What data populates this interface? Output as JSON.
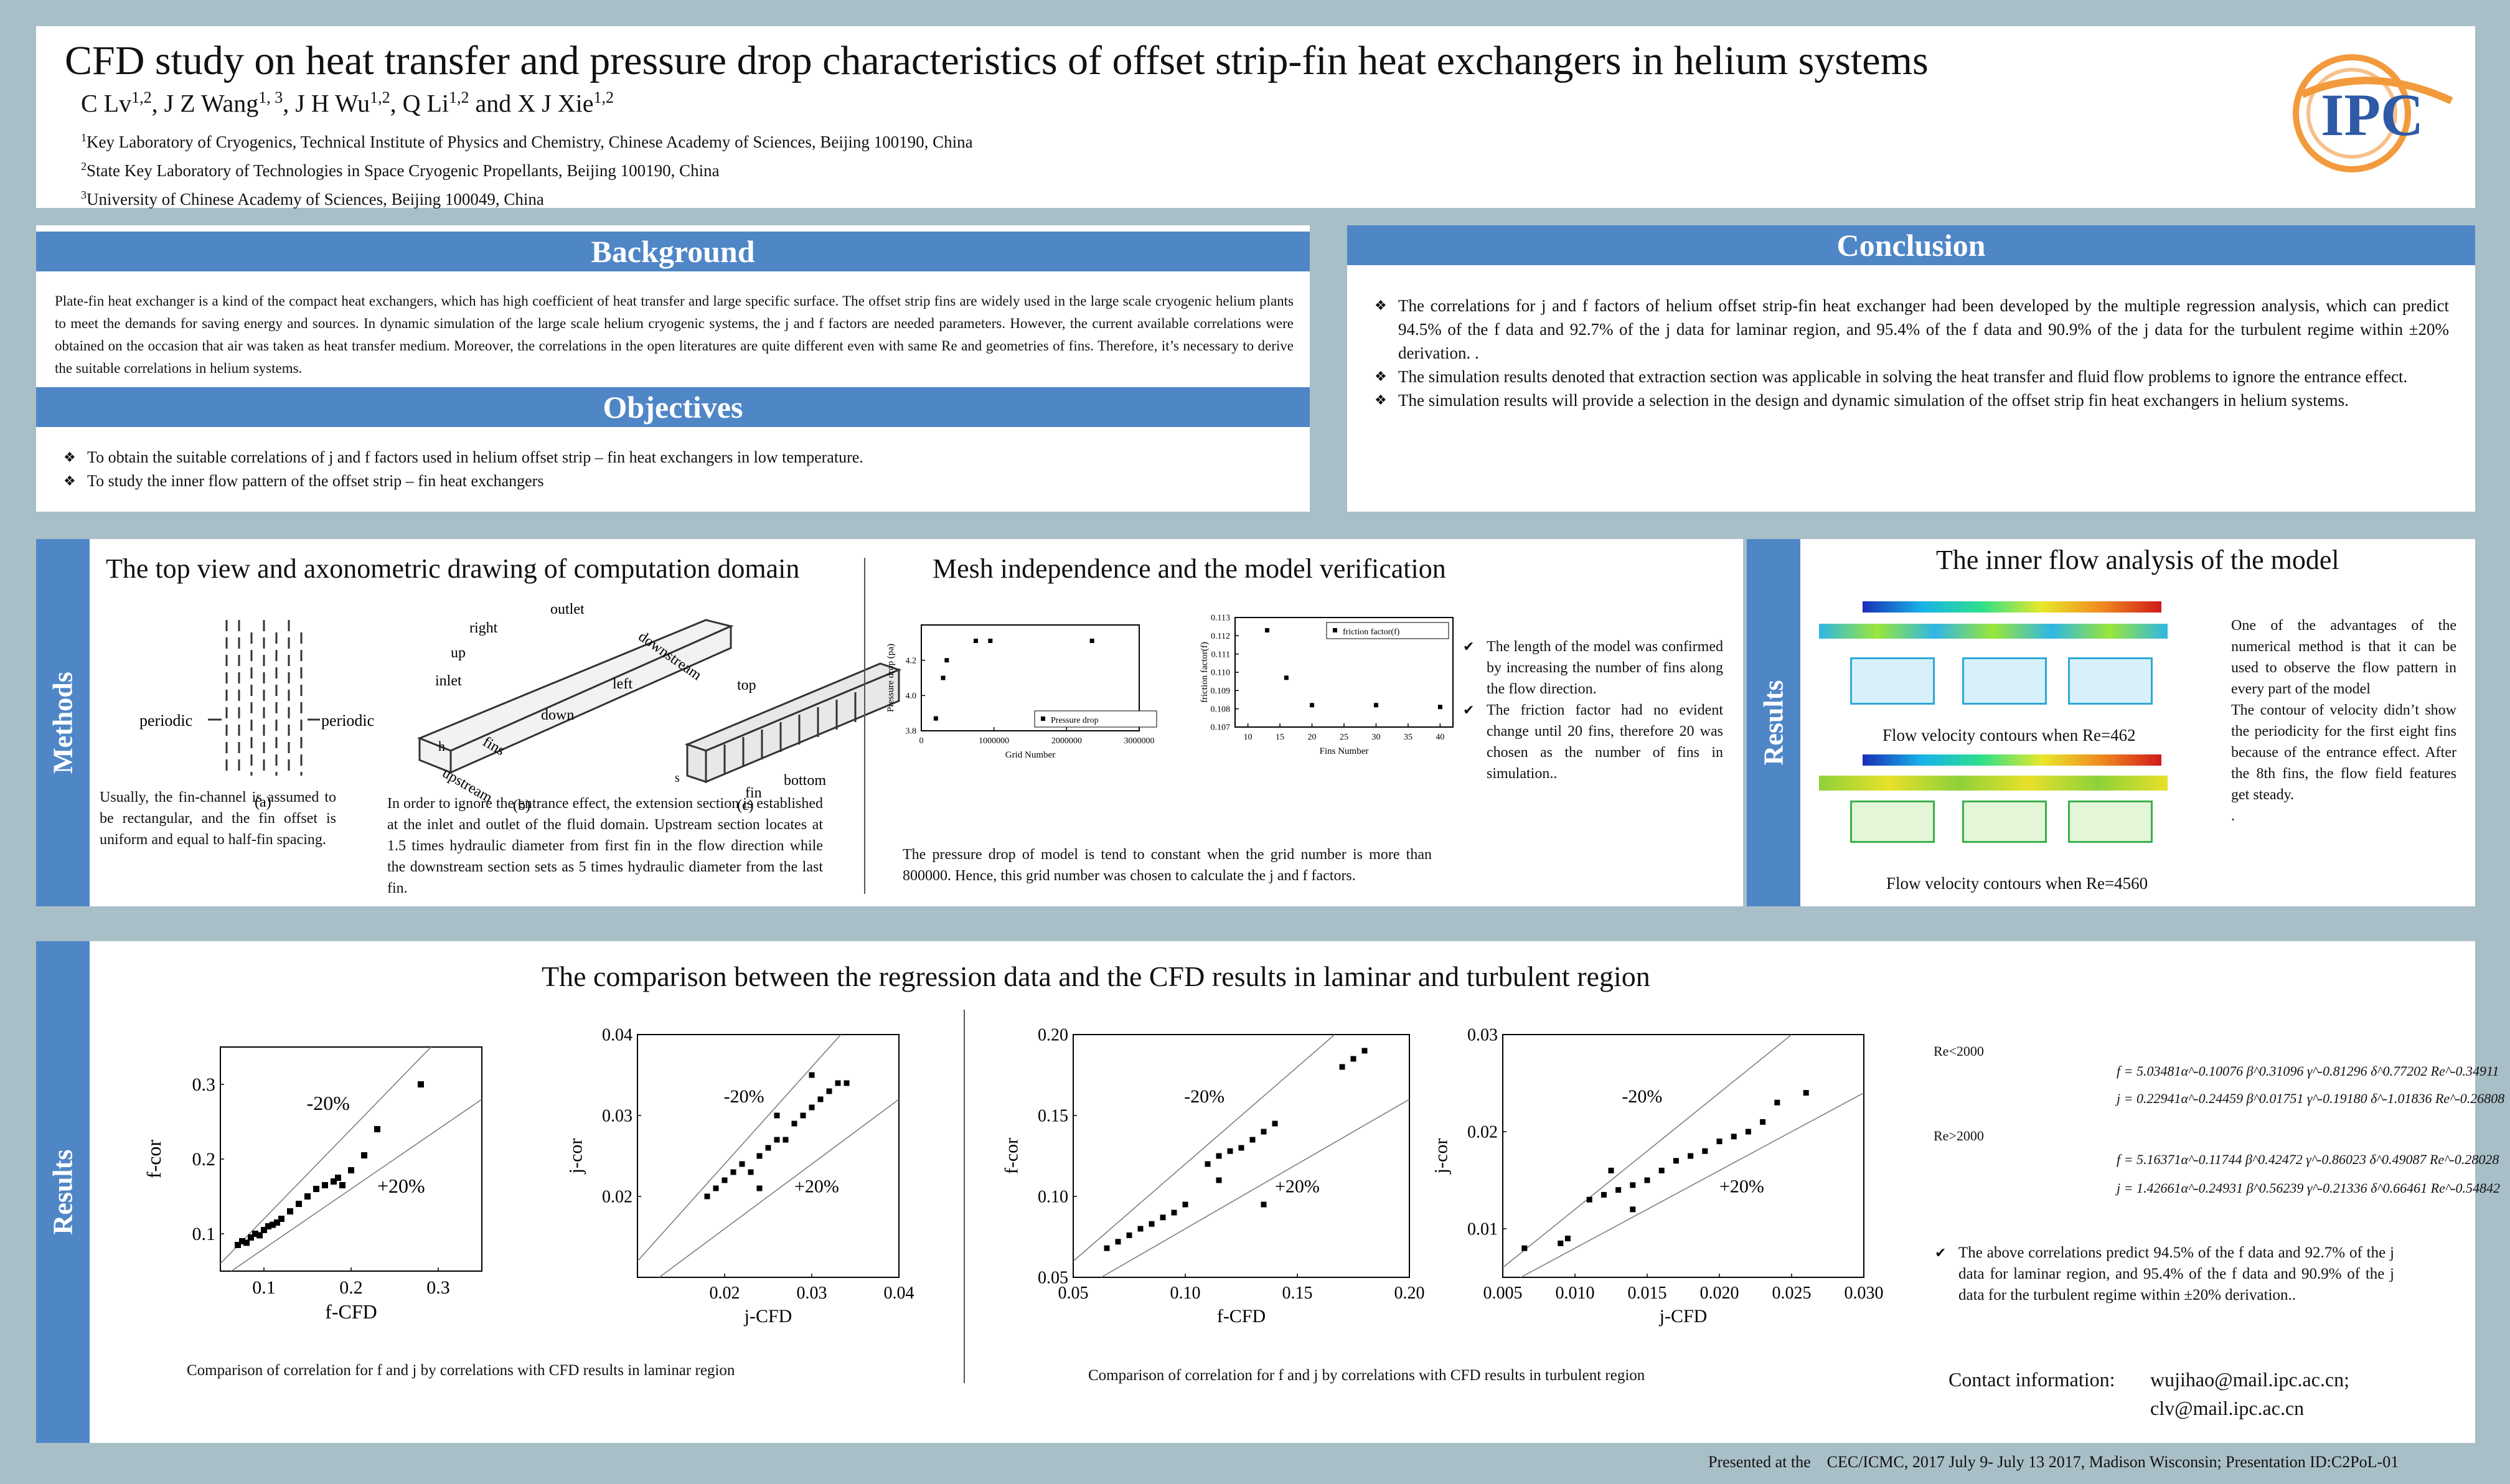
{
  "header": {
    "title": "CFD study on heat transfer and pressure drop characteristics of offset strip-fin heat exchangers in helium systems",
    "authors": [
      {
        "name": "C Lv",
        "sup": "1,2"
      },
      {
        "name": "J Z Wang",
        "sup": "1, 3"
      },
      {
        "name": "J H Wu",
        "sup": "1,2"
      },
      {
        "name": "Q Li",
        "sup": "1,2"
      },
      {
        "name": "X J Xie",
        "sup": "1,2"
      }
    ],
    "author_sep": ", ",
    "author_and": " and ",
    "affiliations": [
      {
        "sup": "1",
        "text": "Key Laboratory of Cryogenics, Technical Institute of Physics and Chemistry, Chinese Academy of Sciences, Beijing 100190, China"
      },
      {
        "sup": "2",
        "text": "State Key Laboratory of Technologies in Space Cryogenic Propellants, Beijing 100190, China"
      },
      {
        "sup": "3",
        "text": "University of Chinese Academy of Sciences, Beijing 100049, China"
      }
    ],
    "logo_text": "IPC"
  },
  "background": {
    "heading": "Background",
    "text": "Plate-fin heat exchanger is a kind of the compact heat exchangers, which has high coefficient of heat transfer and large specific surface. The offset strip fins are widely used in the large scale cryogenic helium plants to meet the demands for saving energy and sources. In dynamic simulation of the large scale helium cryogenic systems, the j and f factors are needed parameters. However, the current available correlations were obtained on the occasion that air was taken as heat transfer medium. Moreover, the correlations in the open literatures are quite different even with same Re and geometries of fins. Therefore, it’s necessary to derive the suitable correlations in helium systems."
  },
  "objectives": {
    "heading": "Objectives",
    "items": [
      "To obtain the suitable correlations of j and f factors used in helium offset strip – fin heat exchangers in low temperature.",
      "To study the inner flow pattern of the offset strip – fin heat exchangers"
    ]
  },
  "conclusion": {
    "heading": "Conclusion",
    "items": [
      "The correlations for j and f factors of helium offset strip-fin heat exchanger had been developed by the multiple regression analysis, which can predict 94.5% of the f data and 92.7% of the j data for laminar region, and 95.4% of the f data and 90.9% of the j data for the turbulent regime within ±20% derivation. .",
      "The simulation results denoted that extraction section was applicable in solving the heat transfer and fluid flow problems to ignore the entrance effect.",
      "The simulation results will provide a selection in the design and dynamic simulation of the offset strip fin heat exchangers in helium systems."
    ]
  },
  "methods": {
    "side_label": "Methods",
    "domain_title": "The top view and axonometric drawing of computation domain",
    "drawing_labels": {
      "periodic_left": "periodic",
      "periodic_right": "periodic",
      "a": "(a)",
      "b": "(b)",
      "c": "(c)",
      "right": "right",
      "outlet": "outlet",
      "up": "up",
      "inlet": "inlet",
      "downstream": "downstream",
      "left": "left",
      "down": "down",
      "fins": "fins",
      "h": "h",
      "upstream": "upstream",
      "s": "s",
      "top": "top",
      "fin": "fin",
      "bottom": "bottom"
    },
    "note_left": "Usually, the fin-channel is assumed to be rectangular, and the fin offset is uniform and equal to half-fin spacing.",
    "note_right": "In order to ignore the entrance effect, the extension section is established at the inlet and outlet of the fluid domain. Upstream section locates at 1.5 times hydraulic diameter from first fin in the flow direction while the downstream section sets as 5 times hydraulic diameter from the last fin.",
    "mesh_title": "Mesh independence and the model verification",
    "mesh_note": "The pressure drop of model is tend to constant when the grid number is more than 800000. Hence, this grid number was chosen to calculate the j and f factors.",
    "checks": [
      "The length of the model was confirmed by increasing the number of fins along the flow direction.",
      "The friction factor had no evident change until 20 fins, therefore 20 was chosen as the number of fins in simulation.."
    ]
  },
  "inner_flow": {
    "side_label": "Results",
    "title": "The inner flow analysis of the model",
    "caption_laminar": "Flow velocity contours when Re=462",
    "caption_turbulent": "Flow velocity contours when Re=4560",
    "text": "One of the advantages of the numerical method is that it can be used to observe the flow pattern in every part of the model\nThe contour of velocity didn’t show the periodicity for the first eight fins because of the entrance effect. After the 8th fins, the flow field features get steady.\n."
  },
  "comparison": {
    "side_label": "Results",
    "title": "The comparison between the regression data and the CFD results in laminar and turbulent  region",
    "caption_laminar": "Comparison of correlation for f and j by correlations  with CFD results in laminar region",
    "caption_turbulent": "Comparison of correlation for f and j by correlations  with CFD results in turbulent  region",
    "re_low": "Re<2000",
    "re_high": "Re>2000",
    "eq_f_lam": "f = 5.03481α^-0.10076 β^0.31096 γ^-0.81296 δ^0.77202 Re^-0.34911",
    "eq_j_lam": "j = 0.22941α^-0.24459 β^0.01751 γ^-0.19180 δ^-1.01836 Re^-0.26808",
    "eq_f_tur": "f = 5.16371α^-0.11744 β^0.42472 γ^-0.86023 δ^0.49087 Re^-0.28028",
    "eq_j_tur": "j = 1.42661α^-0.24931 β^0.56239 γ^-0.21336 δ^0.66461 Re^-0.54842",
    "check": "The above correlations predict 94.5% of the f data and 92.7% of the j data for laminar region, and 95.4% of the f data and 90.9% of the j data for the turbulent regime within ±20% derivation..",
    "contact_label": "Contact information:",
    "contact_email1": "wujihao@mail.ipc.ac.cn;",
    "contact_email2": "clv@mail.ipc.ac.cn"
  },
  "footer": "Presented at the    CEC/ICMC, 2017 July 9- July 13 2017, Madison Wisconsin; Presentation ID:C2PoL-01",
  "colors": {
    "accent_blue": "#4f86c6",
    "background": "#a9bfc7"
  },
  "chart_data": [
    {
      "id": "pressure",
      "type": "scatter",
      "title": "",
      "xlabel": "Grid Number",
      "ylabel": "Pressure drop (pa)",
      "xlim": [
        0,
        3000000
      ],
      "ylim": [
        3.8,
        4.4
      ],
      "xticks": [
        "0",
        "1000000",
        "2000000",
        "3000000"
      ],
      "xtickvals": [
        0,
        1000000,
        2000000,
        3000000
      ],
      "yticks": [
        "3.8",
        "4.0",
        "4.2"
      ],
      "ytickvals": [
        3.8,
        4.0,
        4.2
      ],
      "series": [
        {
          "name": "Pressure drop",
          "x": [
            200000,
            300000,
            350000,
            750000,
            950000,
            2350000
          ],
          "y": [
            3.87,
            4.1,
            4.2,
            4.31,
            4.31,
            4.31
          ]
        }
      ],
      "legend": "bottom-right"
    },
    {
      "id": "friction",
      "type": "scatter",
      "title": "",
      "xlabel": "Fins Number",
      "ylabel": "friction factor(f)",
      "xlim": [
        8,
        42
      ],
      "ylim": [
        0.107,
        0.113
      ],
      "xticks": [
        "10",
        "15",
        "20",
        "25",
        "30",
        "35",
        "40"
      ],
      "xtickvals": [
        10,
        15,
        20,
        25,
        30,
        35,
        40
      ],
      "yticks": [
        "0.107",
        "0.108",
        "0.109",
        "0.110",
        "0.111",
        "0.112",
        "0.113"
      ],
      "ytickvals": [
        0.107,
        0.108,
        0.109,
        0.11,
        0.111,
        0.112,
        0.113
      ],
      "series": [
        {
          "name": "friction factor(f)",
          "x": [
            13,
            16,
            20,
            30,
            40
          ],
          "y": [
            0.1123,
            0.1097,
            0.1082,
            0.1082,
            0.1081
          ]
        }
      ],
      "legend": "top-right"
    },
    {
      "id": "f_lam",
      "type": "scatter",
      "title": "",
      "xlabel": "f-CFD",
      "ylabel": "f-cor",
      "xlim": [
        0.05,
        0.35
      ],
      "ylim": [
        0.05,
        0.35
      ],
      "xticks": [
        "0.1",
        "0.2",
        "0.3"
      ],
      "xtickvals": [
        0.1,
        0.2,
        0.3
      ],
      "yticks": [
        "0.1",
        "0.2",
        "0.3"
      ],
      "ytickvals": [
        0.1,
        0.2,
        0.3
      ],
      "annotations": [
        "-20%",
        "+20%"
      ],
      "series": [
        {
          "name": "",
          "x": [
            0.07,
            0.075,
            0.08,
            0.085,
            0.09,
            0.095,
            0.1,
            0.105,
            0.11,
            0.115,
            0.12,
            0.13,
            0.14,
            0.15,
            0.16,
            0.17,
            0.18,
            0.185,
            0.19,
            0.2,
            0.215,
            0.23,
            0.28
          ],
          "y": [
            0.085,
            0.09,
            0.088,
            0.095,
            0.1,
            0.098,
            0.105,
            0.11,
            0.112,
            0.115,
            0.12,
            0.13,
            0.14,
            0.15,
            0.16,
            0.165,
            0.17,
            0.175,
            0.165,
            0.185,
            0.205,
            0.24,
            0.3
          ]
        }
      ],
      "diagonal_bands": [
        1.2,
        0.8
      ]
    },
    {
      "id": "j_lam",
      "type": "scatter",
      "title": "",
      "xlabel": "j-CFD",
      "ylabel": "j-cor",
      "xlim": [
        0.01,
        0.04
      ],
      "ylim": [
        0.01,
        0.04
      ],
      "xticks": [
        "0.02",
        "0.03",
        "0.04"
      ],
      "xtickvals": [
        0.02,
        0.03,
        0.04
      ],
      "yticks": [
        "0.02",
        "0.03",
        "0.04"
      ],
      "ytickvals": [
        0.02,
        0.03,
        0.04
      ],
      "annotations": [
        "-20%",
        "+20%"
      ],
      "series": [
        {
          "name": "",
          "x": [
            0.018,
            0.019,
            0.02,
            0.021,
            0.022,
            0.023,
            0.024,
            0.025,
            0.026,
            0.027,
            0.028,
            0.029,
            0.03,
            0.031,
            0.032,
            0.033,
            0.034,
            0.03,
            0.026,
            0.024
          ],
          "y": [
            0.02,
            0.021,
            0.022,
            0.023,
            0.024,
            0.023,
            0.025,
            0.026,
            0.027,
            0.027,
            0.029,
            0.03,
            0.031,
            0.032,
            0.033,
            0.034,
            0.034,
            0.035,
            0.03,
            0.021
          ]
        }
      ],
      "diagonal_bands": [
        1.2,
        0.8
      ]
    },
    {
      "id": "f_tur",
      "type": "scatter",
      "title": "",
      "xlabel": "f-CFD",
      "ylabel": "f-cor",
      "xlim": [
        0.05,
        0.2
      ],
      "ylim": [
        0.05,
        0.2
      ],
      "xticks": [
        "0.05",
        "0.10",
        "0.15",
        "0.20"
      ],
      "xtickvals": [
        0.05,
        0.1,
        0.15,
        0.2
      ],
      "yticks": [
        "0.05",
        "0.10",
        "0.15",
        "0.20"
      ],
      "ytickvals": [
        0.05,
        0.1,
        0.15,
        0.2
      ],
      "annotations": [
        "-20%",
        "+20%"
      ],
      "series": [
        {
          "name": "",
          "x": [
            0.065,
            0.07,
            0.075,
            0.08,
            0.085,
            0.09,
            0.095,
            0.1,
            0.11,
            0.115,
            0.12,
            0.125,
            0.13,
            0.135,
            0.14,
            0.17,
            0.175,
            0.18,
            0.135,
            0.115
          ],
          "y": [
            0.068,
            0.072,
            0.076,
            0.08,
            0.083,
            0.087,
            0.09,
            0.095,
            0.12,
            0.125,
            0.128,
            0.13,
            0.135,
            0.14,
            0.145,
            0.18,
            0.185,
            0.19,
            0.095,
            0.11
          ]
        }
      ],
      "diagonal_bands": [
        1.2,
        0.8
      ]
    },
    {
      "id": "j_tur",
      "type": "scatter",
      "title": "",
      "xlabel": "j-CFD",
      "ylabel": "j-cor",
      "xlim": [
        0.005,
        0.03
      ],
      "ylim": [
        0.005,
        0.03
      ],
      "xticks": [
        "0.005",
        "0.010",
        "0.015",
        "0.020",
        "0.025",
        "0.030"
      ],
      "xtickvals": [
        0.005,
        0.01,
        0.015,
        0.02,
        0.025,
        0.03
      ],
      "yticks": [
        "0.01",
        "0.02",
        "0.03"
      ],
      "ytickvals": [
        0.01,
        0.02,
        0.03
      ],
      "annotations": [
        "-20%",
        "+20%"
      ],
      "series": [
        {
          "name": "",
          "x": [
            0.0065,
            0.009,
            0.0095,
            0.011,
            0.012,
            0.013,
            0.014,
            0.015,
            0.016,
            0.017,
            0.018,
            0.019,
            0.02,
            0.021,
            0.022,
            0.023,
            0.024,
            0.026,
            0.0125,
            0.014
          ],
          "y": [
            0.008,
            0.0085,
            0.009,
            0.013,
            0.0135,
            0.014,
            0.0145,
            0.015,
            0.016,
            0.017,
            0.0175,
            0.018,
            0.019,
            0.0195,
            0.02,
            0.021,
            0.023,
            0.024,
            0.016,
            0.012
          ]
        }
      ],
      "diagonal_bands": [
        1.2,
        0.8
      ]
    }
  ]
}
